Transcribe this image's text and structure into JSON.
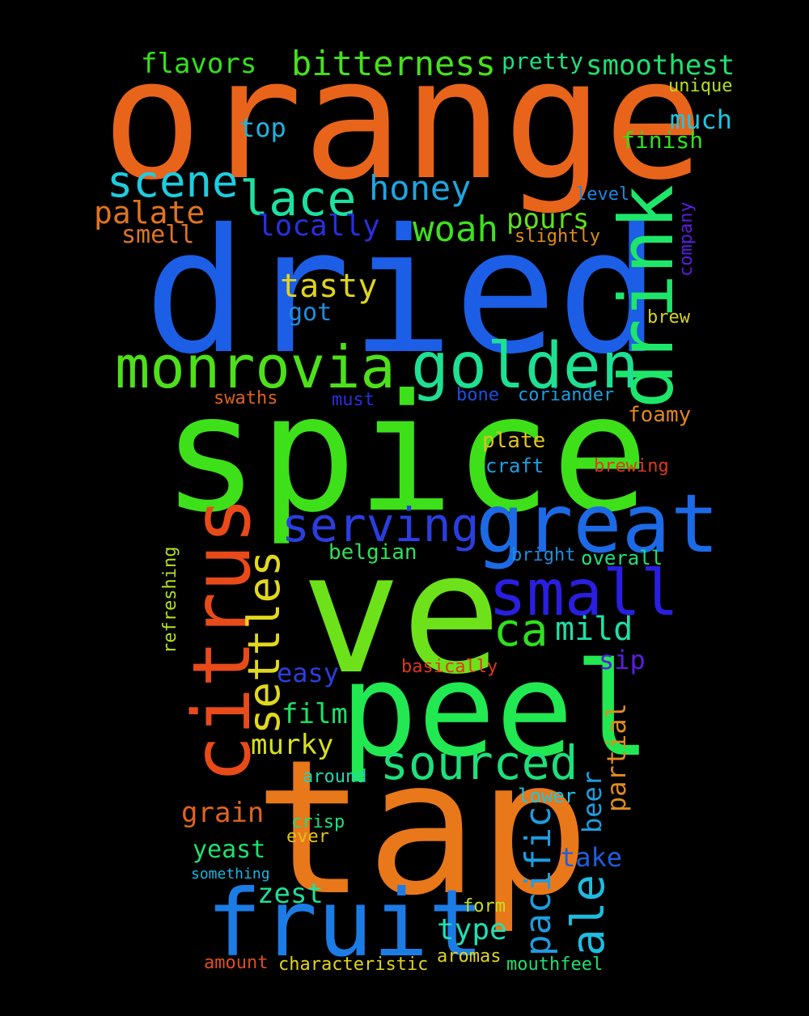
{
  "words": [
    {
      "id": "orange",
      "text": "orange",
      "color": "#e8641a"
    },
    {
      "id": "dried",
      "text": "dried",
      "color": "#1c5ee6"
    },
    {
      "id": "spice",
      "text": "spice",
      "color": "#3ee01a"
    },
    {
      "id": "ve",
      "text": "ve",
      "color": "#6de21a"
    },
    {
      "id": "tap",
      "text": "tap",
      "color": "#e8781a"
    },
    {
      "id": "peel",
      "text": "peel",
      "color": "#22e852"
    },
    {
      "id": "fruit",
      "text": "fruit",
      "color": "#1c7ce6"
    },
    {
      "id": "drink",
      "text": "drink",
      "color": "#1ee66a"
    },
    {
      "id": "citrus",
      "text": "citrus",
      "color": "#e84a1a"
    },
    {
      "id": "great",
      "text": "great",
      "color": "#1c6ae6"
    },
    {
      "id": "golden",
      "text": "golden",
      "color": "#1ee092"
    },
    {
      "id": "monrovia",
      "text": "monrovia",
      "color": "#4ee01a"
    },
    {
      "id": "small",
      "text": "small",
      "color": "#2a1ee0"
    },
    {
      "id": "serving",
      "text": "serving",
      "color": "#2a3ee0"
    },
    {
      "id": "sourced",
      "text": "sourced",
      "color": "#1ee07a"
    },
    {
      "id": "settles",
      "text": "settles",
      "color": "#e0d81e"
    },
    {
      "id": "lace",
      "text": "lace",
      "color": "#1ee0a2"
    },
    {
      "id": "scene",
      "text": "scene",
      "color": "#1ecce0"
    },
    {
      "id": "bitterness",
      "text": "bitterness",
      "color": "#48e01e"
    },
    {
      "id": "ale",
      "text": "ale",
      "color": "#1ebce0"
    },
    {
      "id": "pacific",
      "text": "pacific",
      "color": "#1e9ce0"
    },
    {
      "id": "ca",
      "text": "ca",
      "color": "#2ee01e"
    },
    {
      "id": "honey",
      "text": "honey",
      "color": "#1ea6e0"
    },
    {
      "id": "woah",
      "text": "woah",
      "color": "#3ee01e"
    },
    {
      "id": "tasty",
      "text": "tasty",
      "color": "#e0d41e"
    },
    {
      "id": "mild",
      "text": "mild",
      "color": "#1ee0a6"
    },
    {
      "id": "locally",
      "text": "locally",
      "color": "#2a2ee0"
    },
    {
      "id": "palate",
      "text": "palate",
      "color": "#e0741e"
    },
    {
      "id": "flavors",
      "text": "flavors",
      "color": "#36e01e"
    },
    {
      "id": "smoothest",
      "text": "smoothest",
      "color": "#1ee06e"
    },
    {
      "id": "pours",
      "text": "pours",
      "color": "#5ee01e"
    },
    {
      "id": "film",
      "text": "film",
      "color": "#1ee066"
    },
    {
      "id": "murky",
      "text": "murky",
      "color": "#d6e01e"
    },
    {
      "id": "easy",
      "text": "easy",
      "color": "#2a3ee0"
    },
    {
      "id": "grain",
      "text": "grain",
      "color": "#e0641e"
    },
    {
      "id": "zest",
      "text": "zest",
      "color": "#1ee09a"
    },
    {
      "id": "yeast",
      "text": "yeast",
      "color": "#1ee06e"
    },
    {
      "id": "type",
      "text": "type",
      "color": "#1ee0b6"
    },
    {
      "id": "take",
      "text": "take",
      "color": "#1e5ee0"
    },
    {
      "id": "beer",
      "text": "beer",
      "color": "#1e9ee0"
    },
    {
      "id": "partial",
      "text": "partial",
      "color": "#e08c1e"
    },
    {
      "id": "sip",
      "text": "sip",
      "color": "#5a1ee0"
    },
    {
      "id": "much",
      "text": "much",
      "color": "#1ec6e0"
    },
    {
      "id": "top",
      "text": "top",
      "color": "#1eb4e0"
    },
    {
      "id": "smell",
      "text": "smell",
      "color": "#e0741e"
    },
    {
      "id": "got",
      "text": "got",
      "color": "#1e8ee0"
    },
    {
      "id": "pretty",
      "text": "pretty",
      "color": "#1ee07e"
    },
    {
      "id": "finish",
      "text": "finish",
      "color": "#2ee01e"
    },
    {
      "id": "unique",
      "text": "unique",
      "color": "#b4e01e"
    },
    {
      "id": "level",
      "text": "level",
      "color": "#1e86e0"
    },
    {
      "id": "slightly",
      "text": "slightly",
      "color": "#e08c1e"
    },
    {
      "id": "company",
      "text": "company",
      "color": "#5a1ee0"
    },
    {
      "id": "brew",
      "text": "brew",
      "color": "#d4d41e"
    },
    {
      "id": "swaths",
      "text": "swaths",
      "color": "#e0621e"
    },
    {
      "id": "must",
      "text": "must",
      "color": "#2a2ee0"
    },
    {
      "id": "bone",
      "text": "bone",
      "color": "#1e4ee0"
    },
    {
      "id": "coriander",
      "text": "coriander",
      "color": "#1e9ee0"
    },
    {
      "id": "foamy",
      "text": "foamy",
      "color": "#e0861e"
    },
    {
      "id": "plate",
      "text": "plate",
      "color": "#e0c21e"
    },
    {
      "id": "craft",
      "text": "craft",
      "color": "#1e9ee0"
    },
    {
      "id": "brewing",
      "text": "brewing",
      "color": "#e0361e"
    },
    {
      "id": "belgian",
      "text": "belgian",
      "color": "#2ee05a"
    },
    {
      "id": "bright",
      "text": "bright",
      "color": "#1e8ee0"
    },
    {
      "id": "overall",
      "text": "overall",
      "color": "#1ee07a"
    },
    {
      "id": "refreshing",
      "text": "refreshing",
      "color": "#b4e01e"
    },
    {
      "id": "basically",
      "text": "basically",
      "color": "#e0361e"
    },
    {
      "id": "around",
      "text": "around",
      "color": "#1ed6b6"
    },
    {
      "id": "lower",
      "text": "lower",
      "color": "#1ec6e0"
    },
    {
      "id": "crisp",
      "text": "crisp",
      "color": "#1ee07e"
    },
    {
      "id": "ever",
      "text": "ever",
      "color": "#e0c21e"
    },
    {
      "id": "something",
      "text": "something",
      "color": "#1eb4e0"
    },
    {
      "id": "form",
      "text": "form",
      "color": "#c6e01e"
    },
    {
      "id": "amount",
      "text": "amount",
      "color": "#e04e1e"
    },
    {
      "id": "characteristic",
      "text": "characteristic",
      "color": "#e0d41e"
    },
    {
      "id": "aromas",
      "text": "aromas",
      "color": "#e0d41e"
    },
    {
      "id": "mouthfeel",
      "text": "mouthfeel",
      "color": "#1ee06e"
    }
  ]
}
